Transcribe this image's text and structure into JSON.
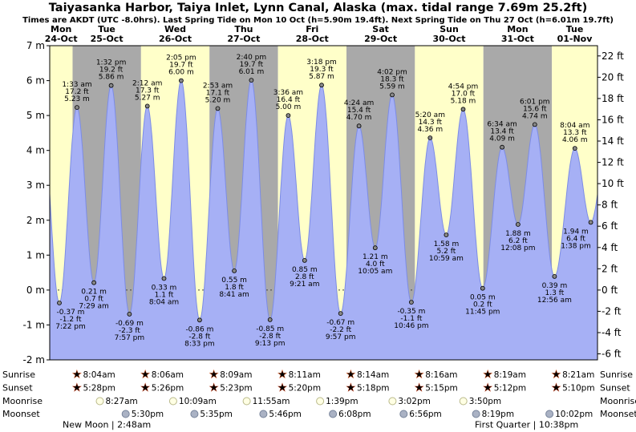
{
  "title": "Taiyasanka Harbor, Taiya Inlet, Lynn Canal, Alaska (max. tidal range 7.69m 25.2ft)",
  "subtitle": "Times are AKDT (UTC -8.0hrs). Last Spring Tide on Mon 10 Oct (h=5.90m 19.4ft). Next Spring Tide on Thu 27 Oct (h=6.01m 19.7ft)",
  "colors": {
    "band_yellow": "#ffffc9",
    "band_gray": "#a9a9a9",
    "tide_fill": "#a6b0f5",
    "tide_line": "#7c8ce6",
    "day_label": "#cc2200",
    "sunrise_star": "#f5c51e",
    "sunrise_star_edge": "#cf4a12",
    "sunset_star": "#ef8010",
    "sunset_star_edge": "#b02c08",
    "moonrise_icon": "#ffffe4",
    "moonrise_icon_edge": "#b9b98a",
    "moonset_icon": "#aab2c4",
    "moonset_icon_edge": "#76839a"
  },
  "chart_data": {
    "type": "area",
    "title": "Taiyasanka Harbor tide curve",
    "y_left": {
      "unit": "m",
      "labels": [
        "7 m",
        "6 m",
        "5 m",
        "4 m",
        "3 m",
        "2 m",
        "1 m",
        "0 m",
        "-1 m",
        "-2 m"
      ]
    },
    "y_right": {
      "unit": "ft",
      "labels": [
        "22 ft",
        "20 ft",
        "18 ft",
        "16 ft",
        "14 ft",
        "12 ft",
        "10 ft",
        "8 ft",
        "6 ft",
        "4 ft",
        "2 ft",
        "0 ft",
        "-2 ft",
        "-4 ft",
        "-6 ft"
      ]
    },
    "days": [
      {
        "weekday": "Mon",
        "date": "24-Oct"
      },
      {
        "weekday": "Tue",
        "date": "25-Oct"
      },
      {
        "weekday": "Wed",
        "date": "26-Oct"
      },
      {
        "weekday": "Thu",
        "date": "27-Oct"
      },
      {
        "weekday": "Fri",
        "date": "28-Oct"
      },
      {
        "weekday": "Sat",
        "date": "29-Oct"
      },
      {
        "weekday": "Sun",
        "date": "30-Oct"
      },
      {
        "weekday": "Mon",
        "date": "31-Oct"
      },
      {
        "weekday": "Tue",
        "date": "01-Nov"
      }
    ],
    "tide_events": [
      {
        "day": 0,
        "type": "low",
        "time": "7:22 pm",
        "height": "-0.37 m",
        "height_ft": "-1.2 ft"
      },
      {
        "day": 1,
        "type": "high",
        "time": "1:33 am",
        "height": "5.23 m",
        "height_ft": "17.2 ft"
      },
      {
        "day": 1,
        "type": "low",
        "time": "7:29 am",
        "height": "0.21 m",
        "height_ft": "0.7 ft"
      },
      {
        "day": 1,
        "type": "high",
        "time": "1:32 pm",
        "height": "5.86 m",
        "height_ft": "19.2 ft"
      },
      {
        "day": 1,
        "type": "low",
        "time": "7:57 pm",
        "height": "-0.69 m",
        "height_ft": "-2.3 ft"
      },
      {
        "day": 2,
        "type": "high",
        "time": "2:12 am",
        "height": "5.27 m",
        "height_ft": "17.3 ft"
      },
      {
        "day": 2,
        "type": "low",
        "time": "8:04 am",
        "height": "0.33 m",
        "height_ft": "1.1 ft"
      },
      {
        "day": 2,
        "type": "high",
        "time": "2:05 pm",
        "height": "6.00 m",
        "height_ft": "19.7 ft"
      },
      {
        "day": 2,
        "type": "low",
        "time": "8:33 pm",
        "height": "-0.86 m",
        "height_ft": "-2.8 ft"
      },
      {
        "day": 3,
        "type": "high",
        "time": "2:53 am",
        "height": "5.20 m",
        "height_ft": "17.1 ft"
      },
      {
        "day": 3,
        "type": "low",
        "time": "8:41 am",
        "height": "0.55 m",
        "height_ft": "1.8 ft"
      },
      {
        "day": 3,
        "type": "high",
        "time": "2:40 pm",
        "height": "6.01 m",
        "height_ft": "19.7 ft"
      },
      {
        "day": 3,
        "type": "low",
        "time": "9:13 pm",
        "height": "-0.85 m",
        "height_ft": "-2.8 ft"
      },
      {
        "day": 4,
        "type": "high",
        "time": "3:36 am",
        "height": "5.00 m",
        "height_ft": "16.4 ft"
      },
      {
        "day": 4,
        "type": "low",
        "time": "9:21 am",
        "height": "0.85 m",
        "height_ft": "2.8 ft"
      },
      {
        "day": 4,
        "type": "high",
        "time": "3:18 pm",
        "height": "5.87 m",
        "height_ft": "19.3 ft"
      },
      {
        "day": 4,
        "type": "low",
        "time": "9:57 pm",
        "height": "-0.67 m",
        "height_ft": "-2.2 ft"
      },
      {
        "day": 5,
        "type": "high",
        "time": "4:24 am",
        "height": "4.70 m",
        "height_ft": "15.4 ft"
      },
      {
        "day": 5,
        "type": "low",
        "time": "10:05 am",
        "height": "1.21 m",
        "height_ft": "4.0 ft"
      },
      {
        "day": 5,
        "type": "high",
        "time": "4:02 pm",
        "height": "5.59 m",
        "height_ft": "18.3 ft"
      },
      {
        "day": 5,
        "type": "low",
        "time": "10:46 pm",
        "height": "-0.35 m",
        "height_ft": "-1.1 ft"
      },
      {
        "day": 6,
        "type": "high",
        "time": "5:20 am",
        "height": "4.36 m",
        "height_ft": "14.3 ft"
      },
      {
        "day": 6,
        "type": "low",
        "time": "10:59 am",
        "height": "1.58 m",
        "height_ft": "5.2 ft"
      },
      {
        "day": 6,
        "type": "high",
        "time": "4:54 pm",
        "height": "5.18 m",
        "height_ft": "17.0 ft"
      },
      {
        "day": 6,
        "type": "low",
        "time": "11:45 pm",
        "height": "0.05 m",
        "height_ft": "0.2 ft"
      },
      {
        "day": 7,
        "type": "high",
        "time": "6:34 am",
        "height": "4.09 m",
        "height_ft": "13.4 ft"
      },
      {
        "day": 7,
        "type": "low",
        "time": "12:08 pm",
        "height": "1.88 m",
        "height_ft": "6.2 ft"
      },
      {
        "day": 7,
        "type": "high",
        "time": "6:01 pm",
        "height": "4.74 m",
        "height_ft": "15.6 ft"
      },
      {
        "day": 8,
        "type": "low",
        "time": "12:56 am",
        "height": "0.39 m",
        "height_ft": "1.3 ft"
      },
      {
        "day": 8,
        "type": "high",
        "time": "8:04 am",
        "height": "4.06 m",
        "height_ft": "13.3 ft"
      },
      {
        "day": 8,
        "type": "low",
        "time": "1:38 pm",
        "height": "1.94 m",
        "height_ft": "6.4 ft"
      }
    ],
    "offchart_anchors": [
      {
        "t_hours": 13.2,
        "height_m": 5.1
      },
      {
        "t_hours": 211.6,
        "height_m": 4.3
      }
    ]
  },
  "astro": {
    "row_labels": [
      "Sunrise",
      "Sunset",
      "Moonrise",
      "Moonset"
    ],
    "sunrise": [
      "8:04am",
      "8:06am",
      "8:09am",
      "8:11am",
      "8:14am",
      "8:16am",
      "8:19am",
      "8:21am"
    ],
    "sunset": [
      "5:28pm",
      "5:26pm",
      "5:23pm",
      "5:20pm",
      "5:18pm",
      "5:15pm",
      "5:12pm",
      "5:10pm"
    ],
    "moonrise": [
      {
        "day": 1,
        "time": "8:27am"
      },
      {
        "day": 2,
        "time": "10:09am"
      },
      {
        "day": 3,
        "time": "11:55am"
      },
      {
        "day": 4,
        "time": "1:39pm"
      },
      {
        "day": 5,
        "time": "3:02pm"
      },
      {
        "day": 6,
        "time": "3:50pm"
      }
    ],
    "moonset": [
      {
        "day": 1,
        "time": "5:30pm"
      },
      {
        "day": 2,
        "time": "5:35pm"
      },
      {
        "day": 3,
        "time": "5:46pm"
      },
      {
        "day": 4,
        "time": "6:08pm"
      },
      {
        "day": 5,
        "time": "6:56pm"
      },
      {
        "day": 6,
        "time": "8:19pm"
      },
      {
        "day": 7,
        "time": "10:02pm"
      }
    ],
    "moon_phases": [
      {
        "name": "New Moon",
        "time": "2:48am"
      },
      {
        "name": "First Quarter",
        "time": "10:38pm"
      }
    ]
  }
}
